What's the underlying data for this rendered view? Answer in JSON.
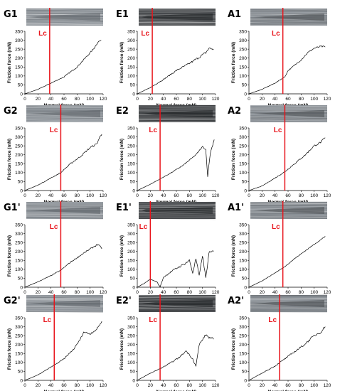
{
  "figure": {
    "xlabel": "Normal force (mN)",
    "ylabel": "Friction force (mN)",
    "lc_label": "Lc",
    "lc_color": "#e8141b",
    "line_color": "#000000",
    "micrograph_style": {
      "G": {
        "base": "#8f959b",
        "dark": "#5a5f64"
      },
      "E": {
        "base": "#4a4d50",
        "dark": "#1e2022"
      },
      "A": {
        "base": "#8c9298",
        "dark": "#45494d"
      }
    }
  },
  "chart_data": [
    {
      "type": "line",
      "label": "G1",
      "xlim": [
        0,
        120
      ],
      "ylim": [
        0,
        350
      ],
      "xticks": [
        0,
        20,
        40,
        60,
        80,
        100,
        120
      ],
      "yticks": [
        0,
        50,
        100,
        150,
        200,
        250,
        300,
        350
      ],
      "lc": 38,
      "noise": 5,
      "points": [
        [
          0,
          0
        ],
        [
          20,
          25
        ],
        [
          40,
          60
        ],
        [
          60,
          95
        ],
        [
          80,
          150
        ],
        [
          95,
          210
        ],
        [
          105,
          250
        ],
        [
          112,
          290
        ],
        [
          117,
          300
        ]
      ]
    },
    {
      "type": "line",
      "label": "E1",
      "xlim": [
        0,
        120
      ],
      "ylim": [
        0,
        350
      ],
      "xticks": [
        0,
        20,
        40,
        60,
        80,
        100,
        120
      ],
      "yticks": [
        0,
        50,
        100,
        150,
        200,
        250,
        300,
        350
      ],
      "lc": 23,
      "noise": 8,
      "points": [
        [
          0,
          0
        ],
        [
          20,
          35
        ],
        [
          40,
          80
        ],
        [
          60,
          130
        ],
        [
          80,
          170
        ],
        [
          95,
          205
        ],
        [
          105,
          230
        ],
        [
          110,
          255
        ],
        [
          117,
          250
        ]
      ]
    },
    {
      "type": "line",
      "label": "A1",
      "xlim": [
        0,
        120
      ],
      "ylim": [
        0,
        350
      ],
      "xticks": [
        0,
        20,
        40,
        60,
        80,
        100,
        120
      ],
      "yticks": [
        0,
        50,
        100,
        150,
        200,
        250,
        300,
        350
      ],
      "lc": 52,
      "noise": 5,
      "points": [
        [
          0,
          0
        ],
        [
          20,
          25
        ],
        [
          40,
          60
        ],
        [
          55,
          95
        ],
        [
          60,
          130
        ],
        [
          70,
          160
        ],
        [
          80,
          190
        ],
        [
          90,
          230
        ],
        [
          100,
          255
        ],
        [
          110,
          265
        ],
        [
          117,
          262
        ]
      ]
    },
    {
      "type": "line",
      "label": "G2",
      "xlim": [
        0,
        120
      ],
      "ylim": [
        0,
        350
      ],
      "xticks": [
        0,
        20,
        40,
        60,
        80,
        100,
        120
      ],
      "yticks": [
        0,
        50,
        100,
        150,
        200,
        250,
        300,
        350
      ],
      "lc": 55,
      "noise": 6,
      "points": [
        [
          0,
          0
        ],
        [
          20,
          30
        ],
        [
          40,
          70
        ],
        [
          55,
          100
        ],
        [
          70,
          150
        ],
        [
          85,
          190
        ],
        [
          100,
          240
        ],
        [
          110,
          260
        ],
        [
          115,
          300
        ],
        [
          118,
          315
        ]
      ]
    },
    {
      "type": "line",
      "label": "E2",
      "xlim": [
        0,
        120
      ],
      "ylim": [
        0,
        350
      ],
      "xticks": [
        0,
        20,
        40,
        60,
        80,
        100,
        120
      ],
      "yticks": [
        0,
        50,
        100,
        150,
        200,
        250,
        300,
        350
      ],
      "lc": 35,
      "noise": 4,
      "points": [
        [
          0,
          0
        ],
        [
          20,
          35
        ],
        [
          35,
          65
        ],
        [
          50,
          95
        ],
        [
          70,
          140
        ],
        [
          90,
          200
        ],
        [
          100,
          245
        ],
        [
          105,
          230
        ],
        [
          108,
          80
        ],
        [
          112,
          210
        ],
        [
          118,
          285
        ]
      ]
    },
    {
      "type": "line",
      "label": "A2",
      "xlim": [
        0,
        120
      ],
      "ylim": [
        0,
        350
      ],
      "xticks": [
        0,
        20,
        40,
        60,
        80,
        100,
        120
      ],
      "yticks": [
        0,
        50,
        100,
        150,
        200,
        250,
        300,
        350
      ],
      "lc": 55,
      "noise": 6,
      "points": [
        [
          0,
          0
        ],
        [
          20,
          25
        ],
        [
          40,
          70
        ],
        [
          55,
          105
        ],
        [
          70,
          150
        ],
        [
          85,
          195
        ],
        [
          100,
          250
        ],
        [
          110,
          270
        ],
        [
          117,
          295
        ]
      ]
    },
    {
      "type": "line",
      "label": "G1'",
      "xlim": [
        0,
        120
      ],
      "ylim": [
        0,
        350
      ],
      "xticks": [
        0,
        20,
        40,
        60,
        80,
        100,
        120
      ],
      "yticks": [
        0,
        50,
        100,
        150,
        200,
        250,
        300,
        350
      ],
      "lc": 55,
      "noise": 5,
      "points": [
        [
          0,
          0
        ],
        [
          20,
          30
        ],
        [
          40,
          65
        ],
        [
          55,
          95
        ],
        [
          70,
          140
        ],
        [
          90,
          190
        ],
        [
          105,
          225
        ],
        [
          112,
          240
        ],
        [
          118,
          215
        ]
      ]
    },
    {
      "type": "line",
      "label": "E1'",
      "xlim": [
        0,
        120
      ],
      "ylim": [
        0,
        350
      ],
      "xticks": [
        0,
        20,
        40,
        60,
        80,
        100,
        120
      ],
      "yticks": [
        0,
        50,
        100,
        150,
        200,
        250,
        300,
        350
      ],
      "lc": 20,
      "noise": 10,
      "points": [
        [
          0,
          0
        ],
        [
          10,
          20
        ],
        [
          20,
          45
        ],
        [
          30,
          30
        ],
        [
          35,
          0
        ],
        [
          40,
          55
        ],
        [
          55,
          95
        ],
        [
          70,
          125
        ],
        [
          80,
          150
        ],
        [
          85,
          80
        ],
        [
          90,
          160
        ],
        [
          95,
          60
        ],
        [
          100,
          180
        ],
        [
          105,
          50
        ],
        [
          110,
          190
        ],
        [
          117,
          200
        ]
      ]
    },
    {
      "type": "line",
      "label": "A1'",
      "xlim": [
        0,
        120
      ],
      "ylim": [
        0,
        350
      ],
      "xticks": [
        0,
        20,
        40,
        60,
        80,
        100,
        120
      ],
      "yticks": [
        0,
        50,
        100,
        150,
        200,
        250,
        300,
        350
      ],
      "lc": 52,
      "noise": 3,
      "points": [
        [
          0,
          0
        ],
        [
          20,
          35
        ],
        [
          40,
          80
        ],
        [
          55,
          115
        ],
        [
          70,
          160
        ],
        [
          85,
          200
        ],
        [
          100,
          240
        ],
        [
          110,
          265
        ],
        [
          117,
          285
        ]
      ]
    },
    {
      "type": "line",
      "label": "G2'",
      "xlim": [
        0,
        120
      ],
      "ylim": [
        0,
        350
      ],
      "xticks": [
        0,
        20,
        40,
        60,
        80,
        100,
        120
      ],
      "yticks": [
        0,
        50,
        100,
        150,
        200,
        250,
        300,
        350
      ],
      "lc": 45,
      "noise": 6,
      "points": [
        [
          0,
          0
        ],
        [
          20,
          30
        ],
        [
          45,
          85
        ],
        [
          60,
          120
        ],
        [
          75,
          175
        ],
        [
          85,
          230
        ],
        [
          90,
          270
        ],
        [
          100,
          260
        ],
        [
          110,
          285
        ],
        [
          118,
          330
        ]
      ]
    },
    {
      "type": "line",
      "label": "E2'",
      "xlim": [
        0,
        120
      ],
      "ylim": [
        0,
        350
      ],
      "xticks": [
        0,
        20,
        40,
        60,
        80,
        100,
        120
      ],
      "yticks": [
        0,
        50,
        100,
        150,
        200,
        250,
        300,
        350
      ],
      "lc": 35,
      "noise": 7,
      "points": [
        [
          0,
          0
        ],
        [
          20,
          40
        ],
        [
          35,
          65
        ],
        [
          50,
          95
        ],
        [
          65,
          130
        ],
        [
          75,
          165
        ],
        [
          85,
          120
        ],
        [
          90,
          80
        ],
        [
          95,
          200
        ],
        [
          105,
          255
        ],
        [
          110,
          240
        ],
        [
          117,
          230
        ]
      ]
    },
    {
      "type": "line",
      "label": "A2'",
      "xlim": [
        0,
        120
      ],
      "ylim": [
        0,
        350
      ],
      "xticks": [
        0,
        20,
        40,
        60,
        80,
        100,
        120
      ],
      "yticks": [
        0,
        50,
        100,
        150,
        200,
        250,
        300,
        350
      ],
      "lc": 47,
      "noise": 8,
      "points": [
        [
          0,
          0
        ],
        [
          20,
          40
        ],
        [
          40,
          80
        ],
        [
          55,
          120
        ],
        [
          70,
          160
        ],
        [
          85,
          200
        ],
        [
          100,
          250
        ],
        [
          110,
          270
        ],
        [
          117,
          300
        ]
      ]
    }
  ]
}
